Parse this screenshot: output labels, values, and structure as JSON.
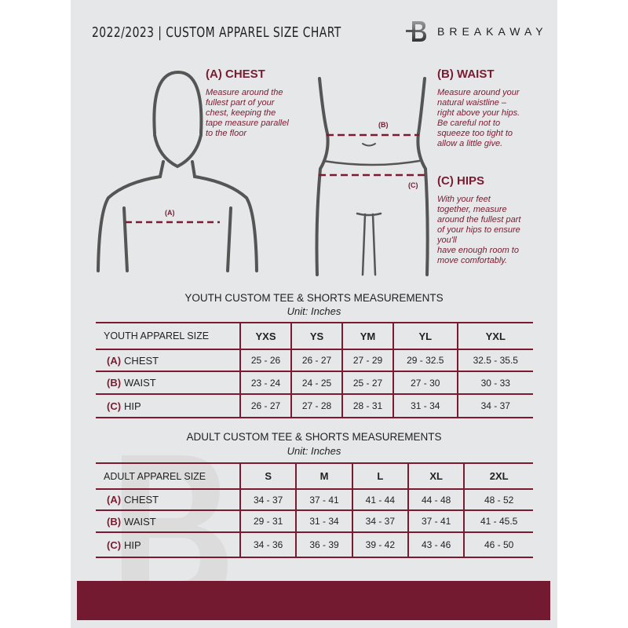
{
  "header": {
    "title": "2022/2023  |  CUSTOM APPAREL SIZE CHART",
    "brand": "BREAKAWAY",
    "logo_icon": "breakaway-b-logo"
  },
  "colors": {
    "accent": "#7a1b31",
    "background": "#e6e7e8",
    "footer": "#731a30"
  },
  "guide": {
    "chest": {
      "heading": "(A) CHEST",
      "marker": "(A)",
      "lines": [
        "Measure around the",
        "fullest part of your",
        "chest, keeping the",
        "tape measure parallel",
        "to the floor"
      ]
    },
    "waist": {
      "heading": "(B) WAIST",
      "marker": "(B)",
      "lines": [
        "Measure around your",
        "natural waistline –",
        "right above your hips.",
        "Be careful not to",
        "squeeze too tight to",
        "allow a little give."
      ]
    },
    "hips": {
      "heading": "(C) HIPS",
      "marker": "(C)",
      "lines": [
        "With your feet",
        "together, measure",
        "around the fullest part",
        "of your hips to ensure",
        "you'll",
        "have enough room to",
        "move comfortably."
      ]
    }
  },
  "tables": [
    {
      "title": "YOUTH CUSTOM TEE & SHORTS MEASUREMENTS",
      "unit": "Unit: Inches",
      "size_label": "YOUTH APPAREL SIZE",
      "sizes": [
        "YXS",
        "YS",
        "YM",
        "YL",
        "YXL"
      ],
      "rows": [
        {
          "tag": "(A)",
          "label": "CHEST",
          "values": [
            "25 - 26",
            "26 - 27",
            "27 - 29",
            "29 - 32.5",
            "32.5 - 35.5"
          ]
        },
        {
          "tag": "(B)",
          "label": "WAIST",
          "values": [
            "23 - 24",
            "24 - 25",
            "25 - 27",
            "27 - 30",
            "30 - 33"
          ]
        },
        {
          "tag": "(C)",
          "label": "HIP",
          "values": [
            "26 - 27",
            "27 - 28",
            "28 - 31",
            "31 - 34",
            "34 - 37"
          ]
        }
      ]
    },
    {
      "title": "ADULT CUSTOM TEE & SHORTS MEASUREMENTS",
      "unit": "Unit: Inches",
      "size_label": "ADULT APPAREL SIZE",
      "sizes": [
        "S",
        "M",
        "L",
        "XL",
        "2XL"
      ],
      "rows": [
        {
          "tag": "(A)",
          "label": "CHEST",
          "values": [
            "34 - 37",
            "37 - 41",
            "41 - 44",
            "44 - 48",
            "48 - 52"
          ]
        },
        {
          "tag": "(B)",
          "label": "WAIST",
          "values": [
            "29 - 31",
            "31 - 34",
            "34 - 37",
            "37 - 41",
            "41 - 45.5"
          ]
        },
        {
          "tag": "(C)",
          "label": "HIP",
          "values": [
            "34 - 36",
            "36 - 39",
            "39 - 42",
            "43 - 46",
            "46 - 50"
          ]
        }
      ]
    }
  ]
}
